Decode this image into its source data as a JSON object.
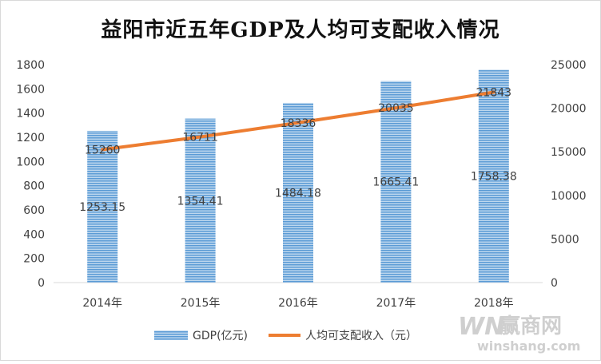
{
  "chart_data": {
    "type": "bar",
    "title": "益阳市近五年GDP及人均可支配收入情况",
    "categories": [
      "2014年",
      "2015年",
      "2016年",
      "2017年",
      "2018年"
    ],
    "series": [
      {
        "name": "GDP(亿元)",
        "type": "bar",
        "axis": "left",
        "values": [
          1253.15,
          1354.41,
          1484.18,
          1665.41,
          1758.38
        ],
        "labels": [
          "1253.15",
          "1354.41",
          "1484.18",
          "1665.41",
          "1758.38"
        ],
        "color": "#5b9bd5"
      },
      {
        "name": "人均可支配收入（元）",
        "type": "line",
        "axis": "right",
        "values": [
          15260,
          16711,
          18336,
          20035,
          21843
        ],
        "labels": [
          "15260",
          "16711",
          "18336",
          "20035",
          "21843"
        ],
        "color": "#ed7d31"
      }
    ],
    "y_left": {
      "ylim": [
        0,
        1800
      ],
      "ticks": [
        "0",
        "200",
        "400",
        "600",
        "800",
        "1000",
        "1200",
        "1400",
        "1600",
        "1800"
      ]
    },
    "y_right": {
      "ylim": [
        0,
        25000
      ],
      "ticks": [
        "0",
        "5000",
        "10000",
        "15000",
        "20000",
        "25000"
      ]
    },
    "legend": "bottom",
    "grid": false
  },
  "watermark": {
    "brand": "WN",
    "brand_cn": "赢商网",
    "domain": "winshang.com"
  }
}
